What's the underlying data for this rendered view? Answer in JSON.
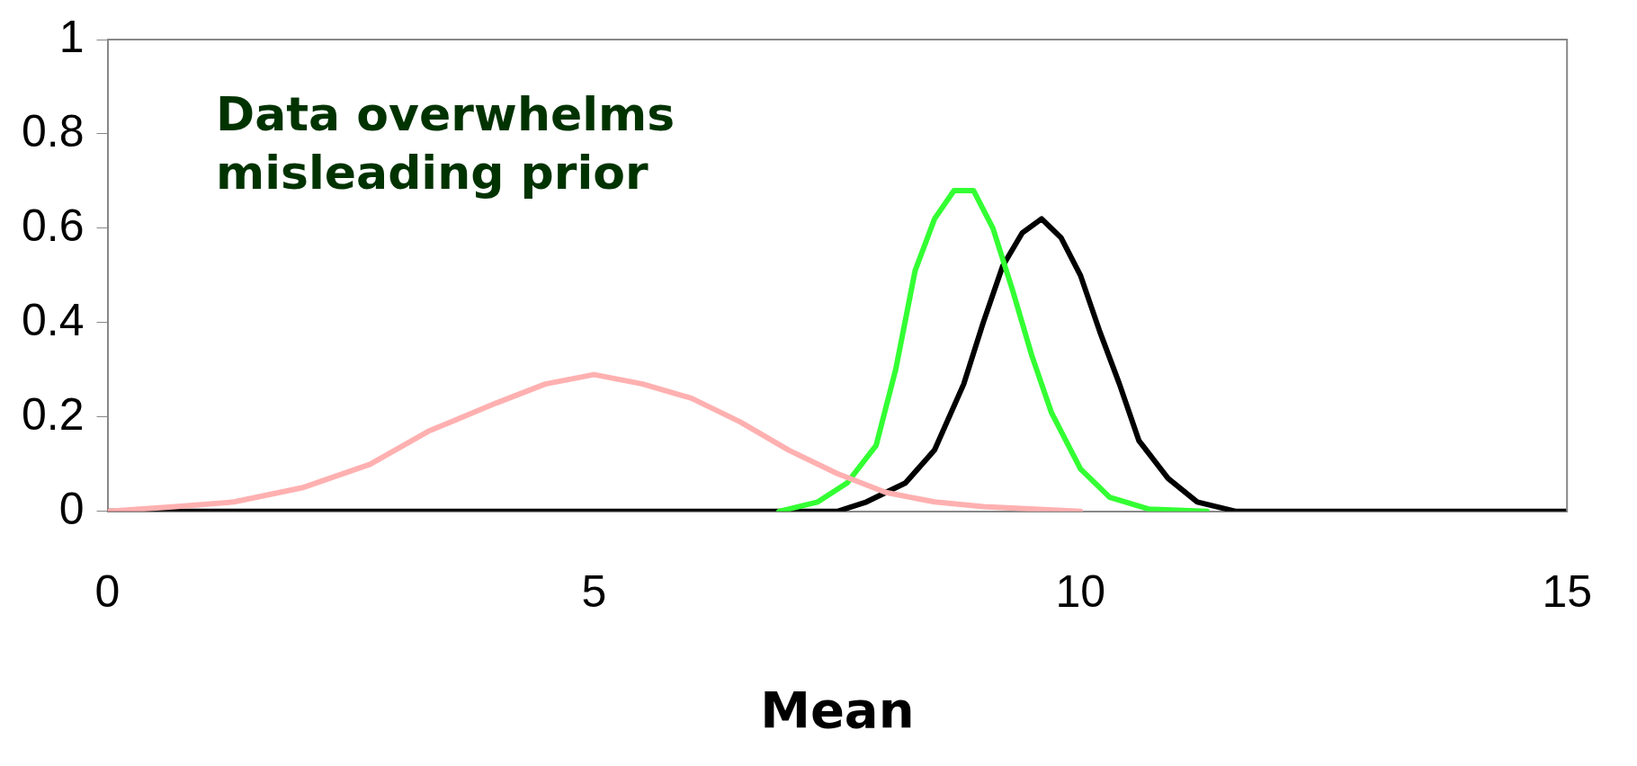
{
  "chart_data": {
    "type": "line",
    "xlabel": "Mean",
    "xlim": [
      0,
      15
    ],
    "xticks": [
      0,
      5,
      10,
      15
    ],
    "ylim": [
      0,
      1
    ],
    "yticks": [
      0,
      0.2,
      0.4,
      0.6,
      0.8,
      1
    ],
    "grid": false,
    "legend": false,
    "marker": "none",
    "annotations": [
      "Data overwhelms\nmisleading prior"
    ],
    "series": [
      {
        "color": "#ffb0b0",
        "x": [
          0,
          0.7,
          1.3,
          2,
          2.7,
          3.3,
          4,
          4.5,
          5,
          5.5,
          6,
          6.5,
          7,
          7.5,
          8,
          8.5,
          9,
          10
        ],
        "values": [
          0,
          0.01,
          0.02,
          0.05,
          0.1,
          0.17,
          0.23,
          0.27,
          0.29,
          0.27,
          0.24,
          0.19,
          0.13,
          0.08,
          0.04,
          0.02,
          0.01,
          0
        ]
      },
      {
        "color": "#33ff33",
        "x": [
          6.9,
          7.3,
          7.6,
          7.9,
          8.1,
          8.3,
          8.5,
          8.7,
          8.9,
          9.1,
          9.3,
          9.5,
          9.7,
          10,
          10.3,
          10.7,
          11.3
        ],
        "values": [
          0,
          0.02,
          0.06,
          0.14,
          0.3,
          0.51,
          0.62,
          0.68,
          0.68,
          0.6,
          0.47,
          0.33,
          0.21,
          0.09,
          0.03,
          0.005,
          0
        ]
      },
      {
        "color": "#000000",
        "x": [
          0,
          7.5,
          7.8,
          8.2,
          8.5,
          8.8,
          9,
          9.2,
          9.4,
          9.6,
          9.8,
          10,
          10.2,
          10.4,
          10.6,
          10.9,
          11.2,
          11.6,
          15
        ],
        "values": [
          0,
          0,
          0.02,
          0.06,
          0.13,
          0.27,
          0.4,
          0.52,
          0.59,
          0.62,
          0.58,
          0.5,
          0.38,
          0.27,
          0.15,
          0.07,
          0.02,
          0,
          0
        ]
      }
    ]
  }
}
